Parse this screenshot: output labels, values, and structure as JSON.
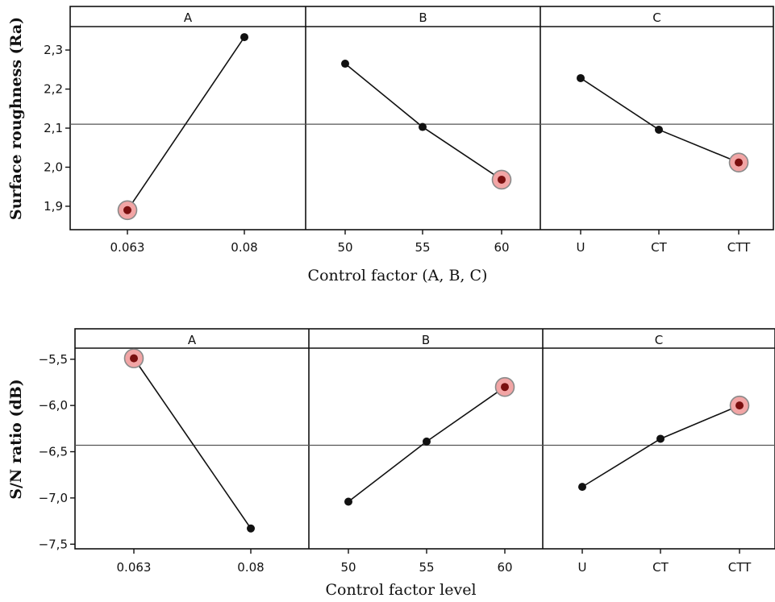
{
  "chart_data": [
    {
      "type": "line",
      "ylabel": "Surface roughness (Ra)",
      "xlabel": "Control factor (A, B, C)",
      "ylim": [
        1.84,
        2.36
      ],
      "yticks": [
        1.9,
        2.0,
        2.1,
        2.2,
        2.3
      ],
      "ytick_labels": [
        "1,9",
        "2,0",
        "2,1",
        "2,2",
        "2,3"
      ],
      "mean": 2.11,
      "panels": [
        {
          "label": "A",
          "categories": [
            "0.063",
            "0.08"
          ],
          "values": [
            1.89,
            2.333
          ],
          "optimal_index": 0
        },
        {
          "label": "B",
          "categories": [
            "50",
            "55",
            "60"
          ],
          "values": [
            2.265,
            2.103,
            1.968
          ],
          "optimal_index": 2
        },
        {
          "label": "C",
          "categories": [
            "U",
            "CT",
            "CTT"
          ],
          "values": [
            2.228,
            2.096,
            2.012
          ],
          "optimal_index": 2
        }
      ]
    },
    {
      "type": "line",
      "ylabel": "S/N ratio (dB)",
      "xlabel": "Control factor level",
      "ylim": [
        -7.55,
        -5.38
      ],
      "yticks": [
        -5.5,
        -6.0,
        -6.5,
        -7.0,
        -7.5
      ],
      "ytick_labels": [
        "−5,5",
        "−6,0",
        "−6,5",
        "−7,0",
        "−7,5"
      ],
      "mean": -6.43,
      "panels": [
        {
          "label": "A",
          "categories": [
            "0.063",
            "0.08"
          ],
          "values": [
            -5.49,
            -7.33
          ],
          "optimal_index": 0
        },
        {
          "label": "B",
          "categories": [
            "50",
            "55",
            "60"
          ],
          "values": [
            -7.04,
            -6.39,
            -5.8
          ],
          "optimal_index": 2
        },
        {
          "label": "C",
          "categories": [
            "U",
            "CT",
            "CTT"
          ],
          "values": [
            -6.88,
            -6.36,
            -6.0
          ],
          "optimal_index": 2
        }
      ]
    }
  ]
}
